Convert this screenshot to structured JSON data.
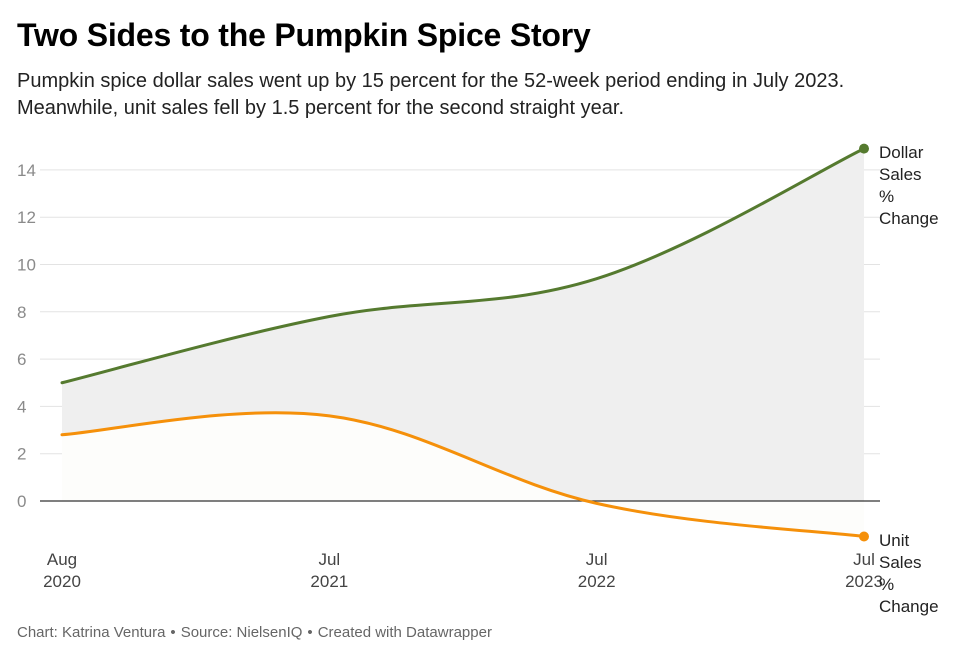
{
  "header": {
    "title": "Two Sides to the Pumpkin Spice Story",
    "subtitle_line1": "Pumpkin spice dollar sales went up by 15 percent for the 52-week period ending in July 2023.",
    "subtitle_line2": "Meanwhile, unit sales fell by 1.5 percent for the second straight year."
  },
  "footer": {
    "chart_by": "Chart: Katrina Ventura",
    "source": "Source: NielsenIQ",
    "created": "Created with Datawrapper",
    "separator": "•"
  },
  "colors": {
    "dollar": "#557a2f",
    "unit": "#f5900a",
    "grid": "#e3e3e3",
    "zero": "#333333",
    "area": "#efefef",
    "area_light": "#fdfdfb"
  },
  "chart_data": {
    "type": "line",
    "title": "Two Sides to the Pumpkin Spice Story",
    "xlabel": "",
    "ylabel": "",
    "x": [
      "Aug 2020",
      "Jul 2021",
      "Jul 2022",
      "Jul 2023"
    ],
    "x_tick_labels": [
      {
        "month": "Aug",
        "year": "2020"
      },
      {
        "month": "Jul",
        "year": "2021"
      },
      {
        "month": "Jul",
        "year": "2022"
      },
      {
        "month": "Jul",
        "year": "2023"
      }
    ],
    "y_ticks": [
      "0",
      "2",
      "4",
      "6",
      "8",
      "10",
      "12",
      "14"
    ],
    "ylim": [
      -2,
      15
    ],
    "grid": true,
    "series": [
      {
        "name": "Dollar Sales % Change",
        "label_lines": [
          "Dollar",
          "Sales",
          "%",
          "Change"
        ],
        "values": [
          5.0,
          7.8,
          9.4,
          14.9
        ]
      },
      {
        "name": "Unit Sales % Change",
        "label_lines": [
          "Unit",
          "Sales",
          "%",
          "Change"
        ],
        "values": [
          2.8,
          3.6,
          -0.1,
          -1.5
        ]
      }
    ]
  }
}
